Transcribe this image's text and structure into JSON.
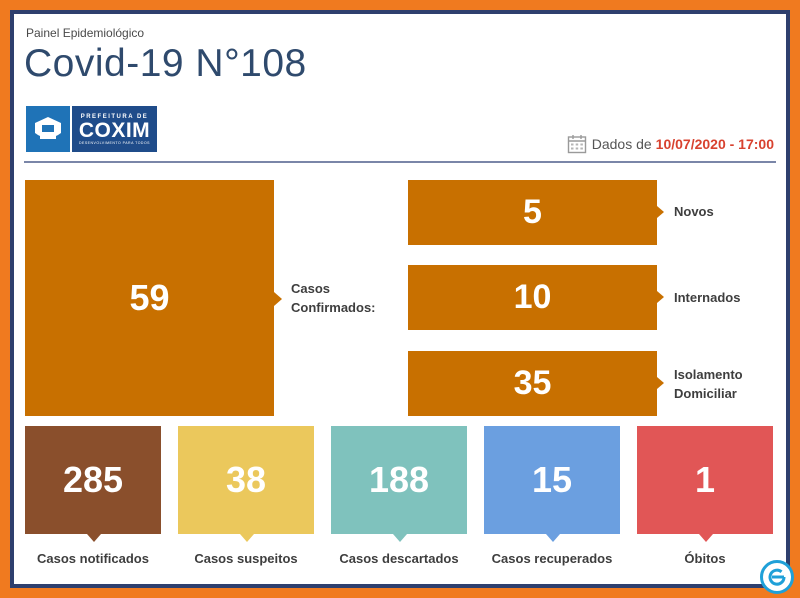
{
  "header": {
    "subtitle": "Painel Epidemiológico",
    "title": "Covid-19 N°108",
    "logo": {
      "prefix": "PREFEITURA DE",
      "name": "COXIM",
      "tagline": "DESENVOLVIMENTO PARA TODOS"
    },
    "date_label": "Dados de",
    "date_value": "10/07/2020 - 17:00"
  },
  "confirmed": {
    "value": "59",
    "label_line1": "Casos",
    "label_line2": "Confirmados:",
    "breakdown": [
      {
        "value": "5",
        "label_line1": "Novos",
        "label_line2": ""
      },
      {
        "value": "10",
        "label_line1": "Internados",
        "label_line2": ""
      },
      {
        "value": "35",
        "label_line1": "Isolamento",
        "label_line2": "Domiciliar"
      }
    ]
  },
  "cards": [
    {
      "value": "285",
      "label": "Casos notificados",
      "color": "#8a4f2c"
    },
    {
      "value": "38",
      "label": "Casos suspeitos",
      "color": "#ebc85c"
    },
    {
      "value": "188",
      "label": "Casos descartados",
      "color": "#7fc2bd"
    },
    {
      "value": "15",
      "label": "Casos recuperados",
      "color": "#6b9fe0"
    },
    {
      "value": "1",
      "label": "Óbitos",
      "color": "#e15656"
    }
  ],
  "colors": {
    "accent_orange": "#c87000",
    "title_blue": "#2f4a6d",
    "date_red": "#d8422f",
    "border_orange": "#f07a1f"
  }
}
